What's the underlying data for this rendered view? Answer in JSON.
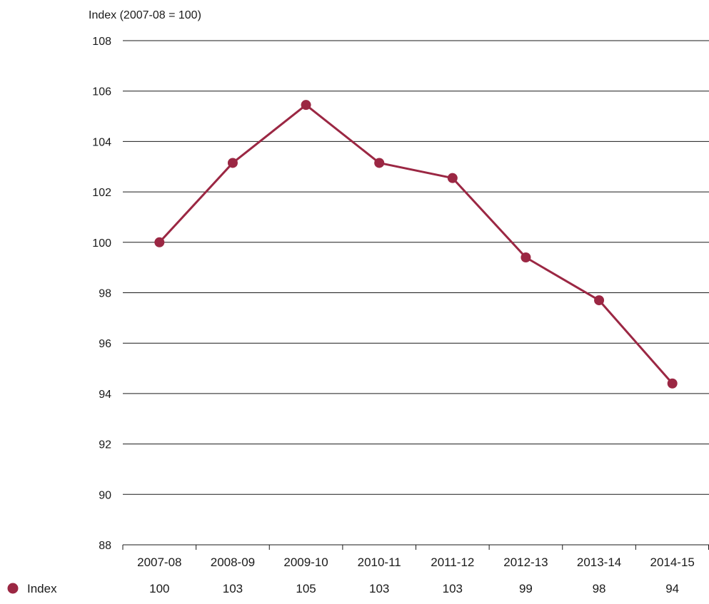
{
  "chart_data": {
    "type": "line",
    "ylabel": "Index (2007-08 = 100)",
    "ylim": [
      88,
      108
    ],
    "yticks": [
      88,
      90,
      92,
      94,
      96,
      98,
      100,
      102,
      104,
      106,
      108
    ],
    "categories": [
      "2007-08",
      "2008-09",
      "2009-10",
      "2010-11",
      "2011-12",
      "2012-13",
      "2013-14",
      "2014-15"
    ],
    "grid": true,
    "series": [
      {
        "name": "Index",
        "color": "#9b2743",
        "values": [
          100,
          103.15,
          105.45,
          103.15,
          102.55,
          99.4,
          97.7,
          94.4
        ],
        "table_labels": [
          "100",
          "103",
          "105",
          "103",
          "103",
          "99",
          "98",
          "94"
        ]
      }
    ],
    "legend": "bottom-left data table"
  }
}
